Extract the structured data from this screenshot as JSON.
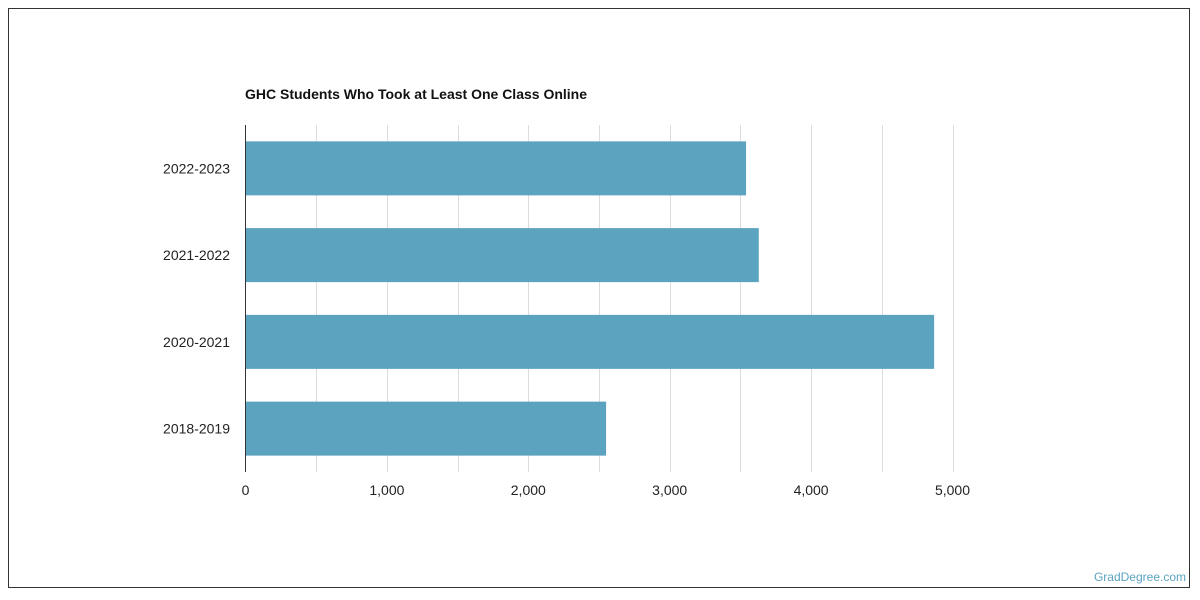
{
  "chart_data": {
    "type": "bar",
    "orientation": "horizontal",
    "title": "GHC Students Who Took at Least One Class Online",
    "xlabel": "",
    "ylabel": "",
    "categories": [
      "2022-2023",
      "2021-2022",
      "2020-2021",
      "2018-2019"
    ],
    "values": [
      3540,
      3630,
      4870,
      2550
    ],
    "xlim": [
      0,
      5000
    ],
    "x_ticks": [
      0,
      1000,
      2000,
      3000,
      4000,
      5000
    ],
    "x_tick_labels": [
      "0",
      "1,000",
      "2,000",
      "3,000",
      "4,000",
      "5,000"
    ],
    "grid": true,
    "bar_color": "#5ba3bf",
    "grid_color": "#dddddd"
  },
  "watermark": "GradDegree.com"
}
